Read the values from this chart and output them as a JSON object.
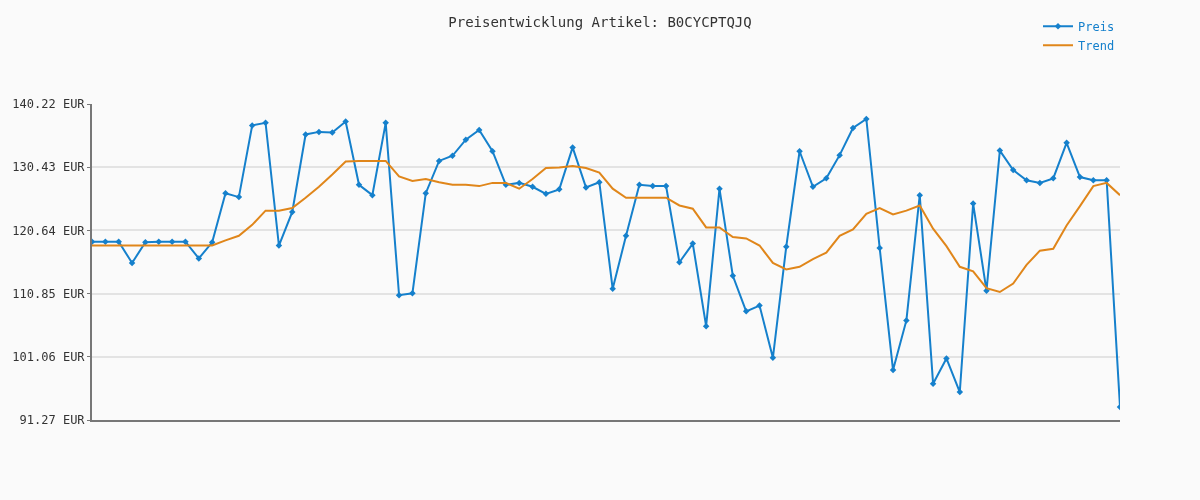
{
  "chart_data": {
    "type": "line",
    "title": "Preisentwicklung Artikel: B0CYCPTQJQ",
    "categories": [
      null,
      null,
      null,
      null,
      null,
      null,
      null,
      null,
      null,
      null,
      null,
      null,
      null,
      null,
      null,
      null,
      null,
      null,
      null,
      null,
      null,
      null,
      null,
      null,
      null,
      null,
      null,
      null,
      null,
      null,
      null,
      null,
      null,
      null,
      null,
      null,
      null,
      null,
      null,
      null,
      null,
      null,
      null,
      null,
      null,
      null,
      null,
      null,
      null,
      null,
      null,
      null,
      null,
      null,
      null,
      null,
      null,
      null,
      null,
      null,
      null,
      null,
      null,
      null,
      null,
      null,
      null,
      null,
      null,
      null,
      null,
      null,
      null,
      null,
      null,
      null,
      null,
      null
    ],
    "series": [
      {
        "name": "Preis",
        "color": "#1580cc",
        "marker": "diamond",
        "values": [
          118.9,
          118.9,
          118.9,
          115.6,
          118.8,
          118.9,
          118.9,
          118.9,
          116.3,
          118.8,
          126.4,
          125.8,
          136.9,
          137.3,
          118.3,
          123.5,
          135.5,
          135.9,
          135.8,
          137.5,
          127.7,
          126.1,
          137.3,
          110.6,
          110.9,
          126.4,
          131.4,
          132.2,
          134.7,
          136.2,
          132.9,
          127.7,
          128.0,
          127.4,
          126.3,
          127.0,
          133.5,
          127.3,
          128.1,
          111.6,
          119.8,
          127.7,
          127.5,
          127.5,
          115.7,
          118.6,
          105.8,
          127.1,
          113.6,
          108.1,
          109.0,
          100.9,
          118.1,
          132.9,
          127.4,
          128.7,
          132.3,
          136.5,
          137.9,
          117.9,
          99.0,
          106.7,
          126.1,
          96.9,
          100.8,
          95.6,
          124.8,
          111.3,
          133.0,
          130.0,
          128.4,
          128.0,
          128.7,
          134.2,
          128.9,
          128.4,
          128.4,
          93.3
        ]
      },
      {
        "name": "Trend",
        "color": "#e0861a",
        "marker": "none",
        "values": [
          118.3,
          118.3,
          118.3,
          118.3,
          118.3,
          118.3,
          118.3,
          118.3,
          118.3,
          118.3,
          119.1,
          119.8,
          121.5,
          123.7,
          123.7,
          124.1,
          125.7,
          127.4,
          129.3,
          131.3,
          131.4,
          131.4,
          131.4,
          129.0,
          128.3,
          128.6,
          128.1,
          127.7,
          127.7,
          127.5,
          128.0,
          128.0,
          127.1,
          128.6,
          130.3,
          130.4,
          130.6,
          130.3,
          129.6,
          127.1,
          125.7,
          125.7,
          125.7,
          125.7,
          124.5,
          124.0,
          121.1,
          121.1,
          119.6,
          119.4,
          118.3,
          115.6,
          114.6,
          115.0,
          116.2,
          117.2,
          119.8,
          120.8,
          123.2,
          124.1,
          123.1,
          123.7,
          124.5,
          120.9,
          118.2,
          115.0,
          114.3,
          111.7,
          111.1,
          112.4,
          115.3,
          117.5,
          117.8,
          121.4,
          124.4,
          127.5,
          128.0,
          126.1
        ]
      }
    ],
    "ylim": [
      91.27,
      140.22
    ],
    "yticks": [
      {
        "value": 91.27,
        "label": "91.27 EUR"
      },
      {
        "value": 101.06,
        "label": "101.06 EUR"
      },
      {
        "value": 110.85,
        "label": "110.85 EUR"
      },
      {
        "value": 120.64,
        "label": "120.64 EUR"
      },
      {
        "value": 130.43,
        "label": "130.43 EUR"
      },
      {
        "value": 140.22,
        "label": "140.22 EUR"
      }
    ],
    "grid": "y",
    "legend": "top right",
    "tick_labels": "y",
    "line_style": "solid"
  }
}
